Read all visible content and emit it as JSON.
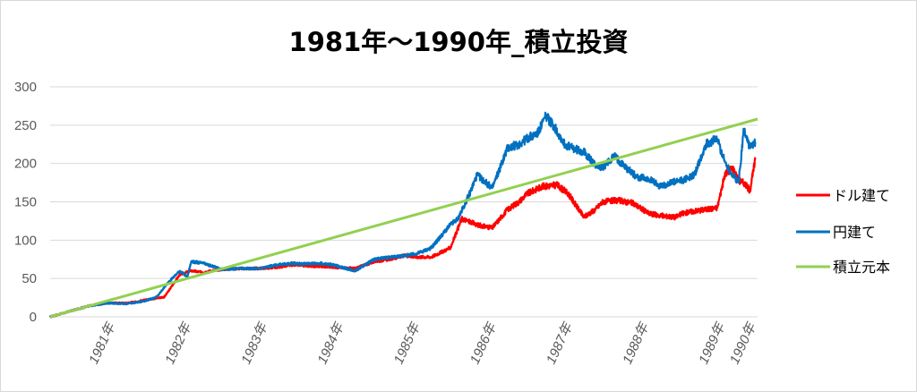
{
  "chart_data": {
    "type": "line",
    "title": "1981年～1990年_積立投資",
    "xlabel": "",
    "ylabel": "",
    "ylim": [
      0,
      300
    ],
    "yticks": [
      "0",
      "50",
      "100",
      "150",
      "200",
      "250",
      "300"
    ],
    "xlim": [
      1980.75,
      1990.03
    ],
    "xticks": [
      {
        "label": "1981年",
        "x": 1981.6
      },
      {
        "label": "1982年",
        "x": 1982.6
      },
      {
        "label": "1983年",
        "x": 1983.6
      },
      {
        "label": "1984年",
        "x": 1984.6
      },
      {
        "label": "1985年",
        "x": 1985.6
      },
      {
        "label": "1986年",
        "x": 1986.6
      },
      {
        "label": "1987年",
        "x": 1987.6
      },
      {
        "label": "1988年",
        "x": 1988.6
      },
      {
        "label": "1989年",
        "x": 1989.6
      },
      {
        "label": "1990年",
        "x": 1990.6
      }
    ],
    "grid": true,
    "legend_position": "right",
    "series": [
      {
        "name": "ドル建て",
        "color": "#ff0000",
        "x": [
          1980.75,
          1981.0,
          1981.25,
          1981.5,
          1981.75,
          1981.9,
          1982.0,
          1982.25,
          1982.45,
          1982.6,
          1982.75,
          1983.0,
          1983.25,
          1983.5,
          1983.75,
          1983.95,
          1984.05,
          1984.25,
          1984.45,
          1984.6,
          1984.75,
          1985.0,
          1985.25,
          1985.4,
          1985.55,
          1985.75,
          1986.0,
          1986.15,
          1986.35,
          1986.55,
          1986.75,
          1986.9,
          1987.0,
          1987.2,
          1987.4,
          1987.55,
          1987.75,
          1987.9,
          1988.0,
          1988.2,
          1988.4,
          1988.6,
          1988.75,
          1988.95,
          1989.05,
          1989.2,
          1989.35,
          1989.5,
          1989.6,
          1989.7,
          1989.78,
          1989.85,
          1989.93,
          1990.0
        ],
        "y": [
          0,
          7,
          14,
          18,
          18,
          20,
          22,
          26,
          55,
          60,
          58,
          62,
          63,
          63,
          65,
          68,
          67,
          66,
          65,
          64,
          63,
          72,
          76,
          80,
          78,
          78,
          90,
          128,
          120,
          116,
          140,
          150,
          160,
          170,
          172,
          160,
          130,
          140,
          150,
          152,
          148,
          135,
          132,
          130,
          135,
          138,
          140,
          142,
          185,
          195,
          178,
          175,
          165,
          205
        ]
      },
      {
        "name": "円建て",
        "color": "#0070c0",
        "x": [
          1980.75,
          1981.0,
          1981.25,
          1981.5,
          1981.75,
          1981.9,
          1982.0,
          1982.15,
          1982.3,
          1982.45,
          1982.55,
          1982.6,
          1982.75,
          1983.0,
          1983.25,
          1983.5,
          1983.75,
          1983.95,
          1984.05,
          1984.25,
          1984.45,
          1984.6,
          1984.75,
          1985.0,
          1985.25,
          1985.4,
          1985.55,
          1985.75,
          1986.0,
          1986.1,
          1986.25,
          1986.35,
          1986.55,
          1986.75,
          1986.9,
          1987.0,
          1987.15,
          1987.25,
          1987.35,
          1987.5,
          1987.6,
          1987.75,
          1987.9,
          1988.0,
          1988.15,
          1988.3,
          1988.45,
          1988.6,
          1988.75,
          1988.9,
          1989.05,
          1989.2,
          1989.35,
          1989.5,
          1989.6,
          1989.7,
          1989.78,
          1989.85,
          1989.93,
          1990.0
        ],
        "y": [
          0,
          7,
          14,
          18,
          17,
          19,
          21,
          26,
          45,
          60,
          52,
          72,
          70,
          62,
          63,
          63,
          68,
          70,
          69,
          70,
          68,
          64,
          60,
          75,
          78,
          80,
          82,
          90,
          120,
          128,
          160,
          185,
          168,
          220,
          225,
          232,
          240,
          262,
          250,
          225,
          220,
          215,
          198,
          195,
          210,
          195,
          182,
          180,
          170,
          175,
          178,
          185,
          225,
          232,
          202,
          185,
          175,
          245,
          220,
          228
        ]
      },
      {
        "name": "積立元本",
        "color": "#92d050",
        "x": [
          1980.75,
          1990.03
        ],
        "y": [
          0,
          258
        ]
      }
    ]
  }
}
